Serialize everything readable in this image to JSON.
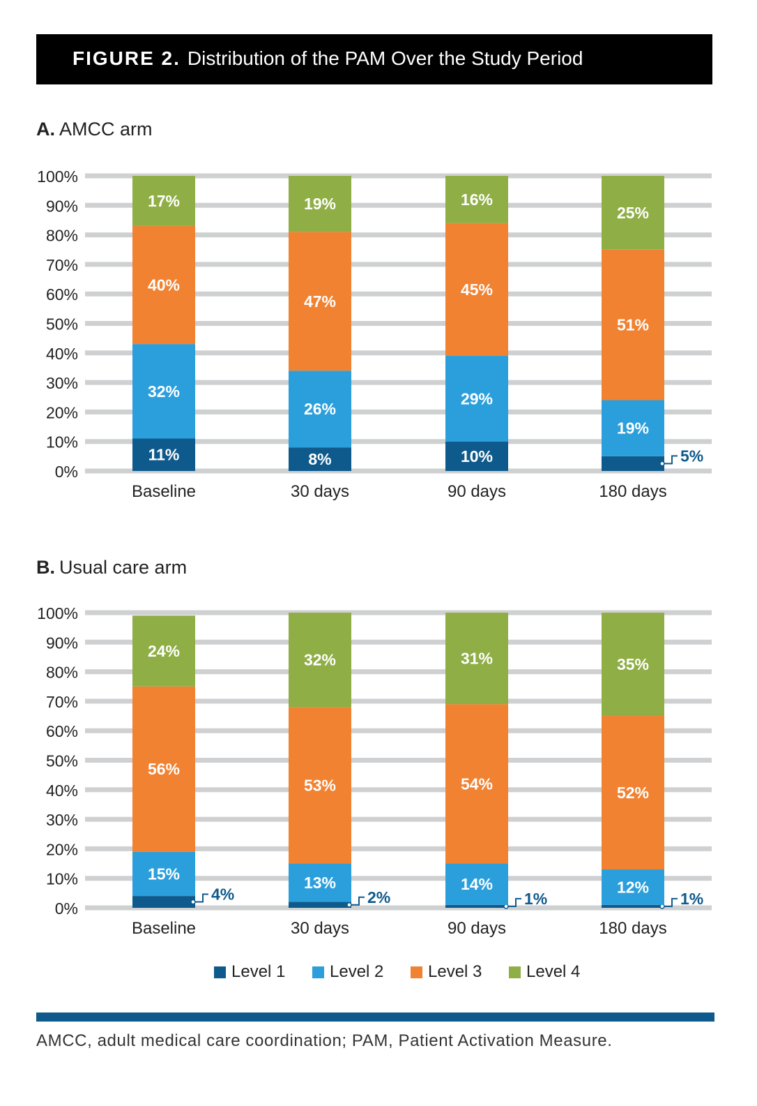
{
  "figure": {
    "label": "FIGURE 2.",
    "title": "Distribution of the PAM Over the Study Period"
  },
  "colors": {
    "level1": "#0f5a8c",
    "level2": "#2b9fdc",
    "level3": "#f08232",
    "level4": "#8fae45",
    "grid": "#cfd0d1",
    "title_bg": "#000000",
    "callout_text": "#0f5a8c"
  },
  "legend": [
    {
      "name": "Level 1",
      "color": "#0f5a8c"
    },
    {
      "name": "Level 2",
      "color": "#2b9fdc"
    },
    {
      "name": "Level 3",
      "color": "#f08232"
    },
    {
      "name": "Level 4",
      "color": "#8fae45"
    }
  ],
  "footnote": "AMCC, adult medical care coordination; PAM, Patient Activation Measure.",
  "chart_data": [
    {
      "type": "bar",
      "stacked": true,
      "panel_letter": "A.",
      "title": "AMCC arm",
      "categories": [
        "Baseline",
        "30 days",
        "90 days",
        "180 days"
      ],
      "ylim": [
        0,
        100
      ],
      "yticks": [
        "0%",
        "10%",
        "20%",
        "30%",
        "40%",
        "50%",
        "60%",
        "70%",
        "80%",
        "90%",
        "100%"
      ],
      "grid": true,
      "series": [
        {
          "name": "Level 1",
          "values": [
            11,
            8,
            10,
            5
          ],
          "labels": [
            "11%",
            "8%",
            "10%",
            "5%"
          ],
          "callout": [
            false,
            false,
            false,
            true
          ]
        },
        {
          "name": "Level 2",
          "values": [
            32,
            26,
            29,
            19
          ],
          "labels": [
            "32%",
            "26%",
            "29%",
            "19%"
          ]
        },
        {
          "name": "Level 3",
          "values": [
            40,
            47,
            45,
            51
          ],
          "labels": [
            "40%",
            "47%",
            "45%",
            "51%"
          ]
        },
        {
          "name": "Level 4",
          "values": [
            17,
            19,
            16,
            25
          ],
          "labels": [
            "17%",
            "19%",
            "16%",
            "25%"
          ]
        }
      ]
    },
    {
      "type": "bar",
      "stacked": true,
      "panel_letter": "B.",
      "title": "Usual care arm",
      "categories": [
        "Baseline",
        "30 days",
        "90 days",
        "180 days"
      ],
      "ylim": [
        0,
        100
      ],
      "yticks": [
        "0%",
        "10%",
        "20%",
        "30%",
        "40%",
        "50%",
        "60%",
        "70%",
        "80%",
        "90%",
        "100%"
      ],
      "grid": true,
      "series": [
        {
          "name": "Level 1",
          "values": [
            4,
            2,
            1,
            1
          ],
          "labels": [
            "4%",
            "2%",
            "1%",
            "1%"
          ],
          "callout": [
            true,
            true,
            true,
            true
          ]
        },
        {
          "name": "Level 2",
          "values": [
            15,
            13,
            14,
            12
          ],
          "labels": [
            "15%",
            "13%",
            "14%",
            "12%"
          ]
        },
        {
          "name": "Level 3",
          "values": [
            56,
            53,
            54,
            52
          ],
          "labels": [
            "56%",
            "53%",
            "54%",
            "52%"
          ]
        },
        {
          "name": "Level 4",
          "values": [
            24,
            32,
            31,
            35
          ],
          "labels": [
            "24%",
            "32%",
            "31%",
            "35%"
          ]
        }
      ]
    }
  ]
}
